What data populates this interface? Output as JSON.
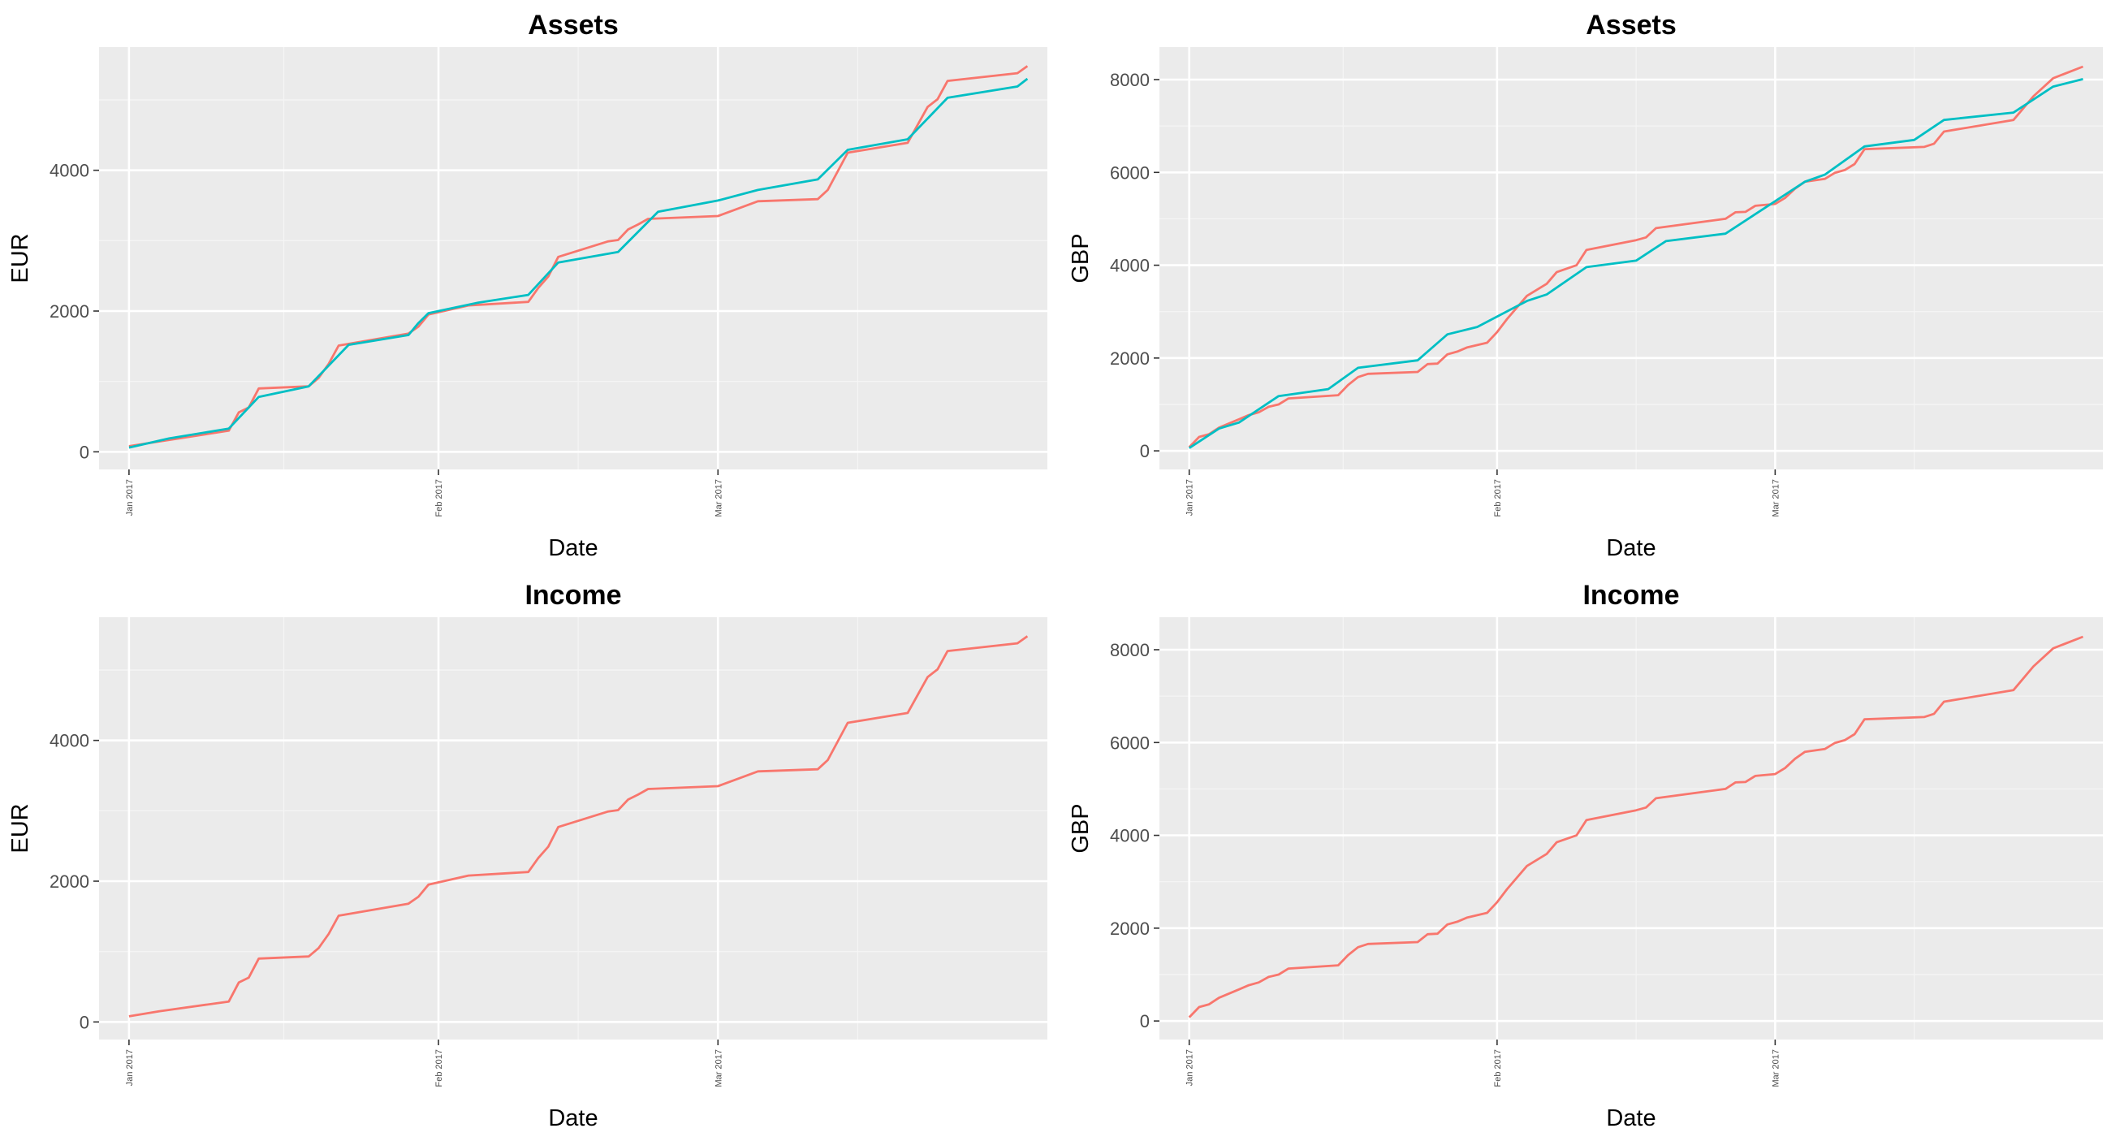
{
  "colors": {
    "panel_bg": "#ebebeb",
    "grid_major": "#ffffff",
    "grid_minor": "#f5f5f5",
    "series_1": "#f8766d",
    "series_2": "#00bfc4"
  },
  "chart_data": [
    {
      "type": "line",
      "title": "Assets",
      "xlabel": "Date",
      "ylabel": "EUR",
      "x_ticks": [
        {
          "date": "2017-01-01",
          "label": "Jan 2017"
        },
        {
          "date": "2017-02-01",
          "label": "Feb 2017"
        },
        {
          "date": "2017-03-01",
          "label": "Mar 2017"
        }
      ],
      "xlim": [
        "2016-12-29",
        "2017-04-03"
      ],
      "ylim": [
        -250,
        5750
      ],
      "y_ticks": [
        0,
        2000,
        4000
      ],
      "grid": true,
      "series": [
        {
          "color": "#f8766d",
          "points": [
            [
              "2017-01-01",
              80
            ],
            [
              "2017-01-11",
              300
            ],
            [
              "2017-01-12",
              560
            ],
            [
              "2017-01-13",
              630
            ],
            [
              "2017-01-14",
              900
            ],
            [
              "2017-01-19",
              930
            ],
            [
              "2017-01-20",
              1050
            ],
            [
              "2017-01-21",
              1250
            ],
            [
              "2017-01-22",
              1510
            ],
            [
              "2017-01-29",
              1680
            ],
            [
              "2017-01-30",
              1780
            ],
            [
              "2017-01-31",
              1950
            ],
            [
              "2017-02-04",
              2080
            ],
            [
              "2017-02-10",
              2130
            ],
            [
              "2017-02-11",
              2330
            ],
            [
              "2017-02-12",
              2490
            ],
            [
              "2017-02-13",
              2770
            ],
            [
              "2017-02-18",
              2990
            ],
            [
              "2017-02-19",
              3010
            ],
            [
              "2017-02-20",
              3160
            ],
            [
              "2017-02-21",
              3230
            ],
            [
              "2017-02-22",
              3310
            ],
            [
              "2017-03-01",
              3350
            ],
            [
              "2017-03-05",
              3560
            ],
            [
              "2017-03-11",
              3590
            ],
            [
              "2017-03-12",
              3720
            ],
            [
              "2017-03-14",
              4250
            ],
            [
              "2017-03-20",
              4390
            ],
            [
              "2017-03-22",
              4900
            ],
            [
              "2017-03-23",
              5010
            ],
            [
              "2017-03-24",
              5270
            ],
            [
              "2017-03-31",
              5380
            ],
            [
              "2017-04-01",
              5480
            ]
          ]
        },
        {
          "color": "#00bfc4",
          "points": [
            [
              "2017-01-01",
              60
            ],
            [
              "2017-01-05",
              190
            ],
            [
              "2017-01-11",
              330
            ],
            [
              "2017-01-14",
              780
            ],
            [
              "2017-01-19",
              930
            ],
            [
              "2017-01-23",
              1520
            ],
            [
              "2017-01-29",
              1660
            ],
            [
              "2017-01-30",
              1830
            ],
            [
              "2017-01-31",
              1970
            ],
            [
              "2017-02-05",
              2120
            ],
            [
              "2017-02-10",
              2230
            ],
            [
              "2017-02-13",
              2690
            ],
            [
              "2017-02-19",
              2840
            ],
            [
              "2017-02-23",
              3410
            ],
            [
              "2017-03-01",
              3570
            ],
            [
              "2017-03-05",
              3720
            ],
            [
              "2017-03-11",
              3870
            ],
            [
              "2017-03-14",
              4290
            ],
            [
              "2017-03-20",
              4440
            ],
            [
              "2017-03-24",
              5030
            ],
            [
              "2017-03-31",
              5190
            ],
            [
              "2017-04-01",
              5300
            ]
          ]
        }
      ]
    },
    {
      "type": "line",
      "title": "Assets",
      "xlabel": "Date",
      "ylabel": "GBP",
      "x_ticks": [
        {
          "date": "2017-01-01",
          "label": "Jan 2017"
        },
        {
          "date": "2017-02-01",
          "label": "Feb 2017"
        },
        {
          "date": "2017-03-01",
          "label": "Mar 2017"
        }
      ],
      "xlim": [
        "2016-12-29",
        "2017-04-03"
      ],
      "ylim": [
        -400,
        8700
      ],
      "y_ticks": [
        0,
        2000,
        4000,
        6000,
        8000
      ],
      "grid": true,
      "series": [
        {
          "color": "#f8766d",
          "points": [
            [
              "2017-01-01",
              80
            ],
            [
              "2017-01-02",
              300
            ],
            [
              "2017-01-03",
              360
            ],
            [
              "2017-01-04",
              500
            ],
            [
              "2017-01-06",
              680
            ],
            [
              "2017-01-07",
              770
            ],
            [
              "2017-01-08",
              830
            ],
            [
              "2017-01-09",
              950
            ],
            [
              "2017-01-10",
              1000
            ],
            [
              "2017-01-11",
              1130
            ],
            [
              "2017-01-16",
              1200
            ],
            [
              "2017-01-17",
              1420
            ],
            [
              "2017-01-18",
              1590
            ],
            [
              "2017-01-19",
              1660
            ],
            [
              "2017-01-24",
              1700
            ],
            [
              "2017-01-25",
              1870
            ],
            [
              "2017-01-26",
              1880
            ],
            [
              "2017-01-27",
              2080
            ],
            [
              "2017-01-28",
              2140
            ],
            [
              "2017-01-29",
              2230
            ],
            [
              "2017-01-31",
              2330
            ],
            [
              "2017-02-01",
              2560
            ],
            [
              "2017-02-02",
              2840
            ],
            [
              "2017-02-04",
              3340
            ],
            [
              "2017-02-06",
              3600
            ],
            [
              "2017-02-07",
              3850
            ],
            [
              "2017-02-09",
              4000
            ],
            [
              "2017-02-10",
              4330
            ],
            [
              "2017-02-15",
              4540
            ],
            [
              "2017-02-16",
              4600
            ],
            [
              "2017-02-17",
              4800
            ],
            [
              "2017-02-24",
              5000
            ],
            [
              "2017-02-25",
              5140
            ],
            [
              "2017-02-26",
              5150
            ],
            [
              "2017-02-27",
              5280
            ],
            [
              "2017-03-01",
              5320
            ],
            [
              "2017-03-02",
              5450
            ],
            [
              "2017-03-03",
              5650
            ],
            [
              "2017-03-04",
              5800
            ],
            [
              "2017-03-06",
              5860
            ],
            [
              "2017-03-07",
              5990
            ],
            [
              "2017-03-08",
              6050
            ],
            [
              "2017-03-09",
              6180
            ],
            [
              "2017-03-10",
              6500
            ],
            [
              "2017-03-16",
              6550
            ],
            [
              "2017-03-17",
              6620
            ],
            [
              "2017-03-18",
              6880
            ],
            [
              "2017-03-25",
              7130
            ],
            [
              "2017-03-27",
              7640
            ],
            [
              "2017-03-29",
              8030
            ],
            [
              "2017-04-01",
              8280
            ]
          ]
        },
        {
          "color": "#00bfc4",
          "points": [
            [
              "2017-01-01",
              60
            ],
            [
              "2017-01-04",
              480
            ],
            [
              "2017-01-06",
              610
            ],
            [
              "2017-01-10",
              1180
            ],
            [
              "2017-01-15",
              1330
            ],
            [
              "2017-01-18",
              1790
            ],
            [
              "2017-01-24",
              1950
            ],
            [
              "2017-01-27",
              2510
            ],
            [
              "2017-01-30",
              2670
            ],
            [
              "2017-02-04",
              3230
            ],
            [
              "2017-02-06",
              3370
            ],
            [
              "2017-02-10",
              3960
            ],
            [
              "2017-02-15",
              4100
            ],
            [
              "2017-02-18",
              4520
            ],
            [
              "2017-02-24",
              4680
            ],
            [
              "2017-03-04",
              5800
            ],
            [
              "2017-03-06",
              5950
            ],
            [
              "2017-03-10",
              6560
            ],
            [
              "2017-03-15",
              6700
            ],
            [
              "2017-03-18",
              7130
            ],
            [
              "2017-03-25",
              7290
            ],
            [
              "2017-03-29",
              7850
            ],
            [
              "2017-04-01",
              8010
            ]
          ]
        }
      ]
    },
    {
      "type": "line",
      "title": "Income",
      "xlabel": "Date",
      "ylabel": "EUR",
      "x_ticks": [
        {
          "date": "2017-01-01",
          "label": "Jan 2017"
        },
        {
          "date": "2017-02-01",
          "label": "Feb 2017"
        },
        {
          "date": "2017-03-01",
          "label": "Mar 2017"
        }
      ],
      "xlim": [
        "2016-12-29",
        "2017-04-03"
      ],
      "ylim": [
        -250,
        5750
      ],
      "y_ticks": [
        0,
        2000,
        4000
      ],
      "grid": true,
      "series": [
        {
          "color": "#f8766d",
          "points": [
            [
              "2017-01-01",
              80
            ],
            [
              "2017-01-04",
              150
            ],
            [
              "2017-01-11",
              290
            ],
            [
              "2017-01-12",
              560
            ],
            [
              "2017-01-13",
              630
            ],
            [
              "2017-01-14",
              900
            ],
            [
              "2017-01-19",
              930
            ],
            [
              "2017-01-20",
              1050
            ],
            [
              "2017-01-21",
              1250
            ],
            [
              "2017-01-22",
              1510
            ],
            [
              "2017-01-29",
              1680
            ],
            [
              "2017-01-30",
              1780
            ],
            [
              "2017-01-31",
              1950
            ],
            [
              "2017-02-04",
              2080
            ],
            [
              "2017-02-10",
              2130
            ],
            [
              "2017-02-11",
              2330
            ],
            [
              "2017-02-12",
              2490
            ],
            [
              "2017-02-13",
              2770
            ],
            [
              "2017-02-18",
              2990
            ],
            [
              "2017-02-19",
              3010
            ],
            [
              "2017-02-20",
              3160
            ],
            [
              "2017-02-21",
              3230
            ],
            [
              "2017-02-22",
              3310
            ],
            [
              "2017-03-01",
              3350
            ],
            [
              "2017-03-05",
              3560
            ],
            [
              "2017-03-11",
              3590
            ],
            [
              "2017-03-12",
              3720
            ],
            [
              "2017-03-14",
              4250
            ],
            [
              "2017-03-20",
              4390
            ],
            [
              "2017-03-22",
              4900
            ],
            [
              "2017-03-23",
              5010
            ],
            [
              "2017-03-24",
              5270
            ],
            [
              "2017-03-31",
              5380
            ],
            [
              "2017-04-01",
              5480
            ]
          ]
        }
      ]
    },
    {
      "type": "line",
      "title": "Income",
      "xlabel": "Date",
      "ylabel": "GBP",
      "x_ticks": [
        {
          "date": "2017-01-01",
          "label": "Jan 2017"
        },
        {
          "date": "2017-02-01",
          "label": "Feb 2017"
        },
        {
          "date": "2017-03-01",
          "label": "Mar 2017"
        }
      ],
      "xlim": [
        "2016-12-29",
        "2017-04-03"
      ],
      "ylim": [
        -400,
        8700
      ],
      "y_ticks": [
        0,
        2000,
        4000,
        6000,
        8000
      ],
      "grid": true,
      "series": [
        {
          "color": "#f8766d",
          "points": [
            [
              "2017-01-01",
              80
            ],
            [
              "2017-01-02",
              300
            ],
            [
              "2017-01-03",
              360
            ],
            [
              "2017-01-04",
              500
            ],
            [
              "2017-01-06",
              680
            ],
            [
              "2017-01-07",
              770
            ],
            [
              "2017-01-08",
              830
            ],
            [
              "2017-01-09",
              950
            ],
            [
              "2017-01-10",
              1000
            ],
            [
              "2017-01-11",
              1130
            ],
            [
              "2017-01-16",
              1200
            ],
            [
              "2017-01-17",
              1420
            ],
            [
              "2017-01-18",
              1590
            ],
            [
              "2017-01-19",
              1660
            ],
            [
              "2017-01-24",
              1700
            ],
            [
              "2017-01-25",
              1870
            ],
            [
              "2017-01-26",
              1880
            ],
            [
              "2017-01-27",
              2080
            ],
            [
              "2017-01-28",
              2140
            ],
            [
              "2017-01-29",
              2230
            ],
            [
              "2017-01-31",
              2330
            ],
            [
              "2017-02-01",
              2560
            ],
            [
              "2017-02-02",
              2840
            ],
            [
              "2017-02-04",
              3340
            ],
            [
              "2017-02-06",
              3600
            ],
            [
              "2017-02-07",
              3850
            ],
            [
              "2017-02-09",
              4000
            ],
            [
              "2017-02-10",
              4330
            ],
            [
              "2017-02-15",
              4540
            ],
            [
              "2017-02-16",
              4600
            ],
            [
              "2017-02-17",
              4800
            ],
            [
              "2017-02-24",
              5000
            ],
            [
              "2017-02-25",
              5140
            ],
            [
              "2017-02-26",
              5150
            ],
            [
              "2017-02-27",
              5280
            ],
            [
              "2017-03-01",
              5320
            ],
            [
              "2017-03-02",
              5450
            ],
            [
              "2017-03-03",
              5650
            ],
            [
              "2017-03-04",
              5800
            ],
            [
              "2017-03-06",
              5860
            ],
            [
              "2017-03-07",
              5990
            ],
            [
              "2017-03-08",
              6050
            ],
            [
              "2017-03-09",
              6180
            ],
            [
              "2017-03-10",
              6500
            ],
            [
              "2017-03-16",
              6550
            ],
            [
              "2017-03-17",
              6620
            ],
            [
              "2017-03-18",
              6880
            ],
            [
              "2017-03-25",
              7130
            ],
            [
              "2017-03-27",
              7640
            ],
            [
              "2017-03-29",
              8030
            ],
            [
              "2017-04-01",
              8280
            ]
          ]
        }
      ]
    }
  ]
}
